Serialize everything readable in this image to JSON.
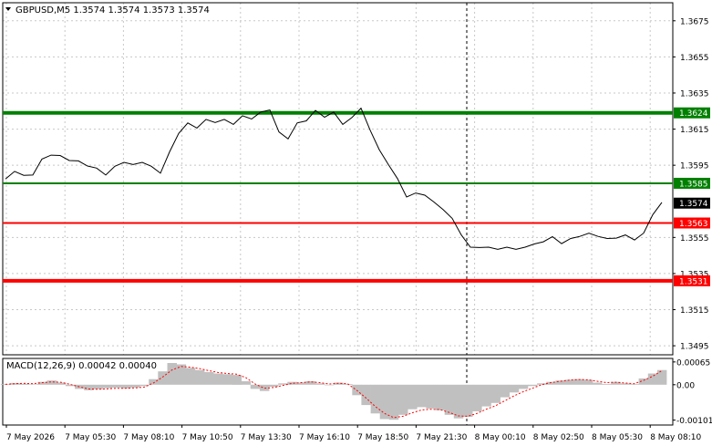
{
  "header": {
    "symbol_caption": "GBPUSD,M5  1.3574 1.3574 1.3573 1.3574",
    "dropdown_icon": "triangle-down-icon"
  },
  "macd_panel": {
    "caption": "MACD(12,26,9) 0.00042 0.00040"
  },
  "colors": {
    "background": "#ffffff",
    "price_line": "#000000",
    "grid": "#c8c8c8",
    "level_green": "#008000",
    "level_red": "#ff0000",
    "macd_histogram": "#c0c0c0",
    "macd_signal": "#ff0000",
    "current_price_tag": "#000000"
  },
  "chart_data": [
    {
      "type": "line",
      "title": "GBPUSD,M5",
      "ohlc_caption": "1.3574 1.3574 1.3573 1.3574",
      "x_tick_labels": [
        "7 May 2026",
        "7 May 05:30",
        "7 May 08:10",
        "7 May 10:50",
        "7 May 13:30",
        "7 May 16:10",
        "7 May 18:50",
        "7 May 21:30",
        "8 May 00:10",
        "8 May 02:50",
        "8 May 05:30",
        "8 May 08:10"
      ],
      "y_tick_labels": [
        "1.3675",
        "1.3655",
        "1.3635",
        "1.3615",
        "1.3595",
        "1.3555",
        "1.3535",
        "1.3515",
        "1.3495"
      ],
      "ylim": [
        1.349,
        1.3685
      ],
      "grid": true,
      "horizontal_levels": [
        {
          "value": 1.3624,
          "label": "1.3624",
          "color": "#008000",
          "thick": true
        },
        {
          "value": 1.3585,
          "label": "1.3585",
          "color": "#008000",
          "thick": false
        },
        {
          "value": 1.3563,
          "label": "1.3563",
          "color": "#ff0000",
          "thick": false
        },
        {
          "value": 1.3531,
          "label": "1.3531",
          "color": "#ff0000",
          "thick": true
        }
      ],
      "current_price": {
        "value": 1.3574,
        "label": "1.3574"
      },
      "period_separator": "8 May 00:00",
      "series": [
        {
          "values": [
            1.3587,
            1.3592,
            1.3589,
            1.359,
            1.3598,
            1.3601,
            1.36,
            1.3598,
            1.3597,
            1.3595,
            1.3593,
            1.359,
            1.3594,
            1.3597,
            1.3595,
            1.3597,
            1.3594,
            1.3591,
            1.3602,
            1.3613,
            1.3618,
            1.3616,
            1.362,
            1.3619,
            1.362,
            1.3618,
            1.3622,
            1.3621,
            1.3624,
            1.3626,
            1.3613,
            1.361,
            1.3618,
            1.362,
            1.3625,
            1.3622,
            1.3624,
            1.3618,
            1.3621,
            1.3627,
            1.3614,
            1.3604,
            1.3595,
            1.3588,
            1.3577,
            1.358,
            1.3578,
            1.3575,
            1.357,
            1.3566,
            1.3556,
            1.355,
            1.3549,
            1.355,
            1.3548,
            1.355,
            1.3548,
            1.355,
            1.3551,
            1.3553,
            1.3555,
            1.3552,
            1.3554,
            1.3556,
            1.3557,
            1.3556,
            1.3554,
            1.3555,
            1.3556,
            1.3554,
            1.3557,
            1.3568,
            1.3574
          ]
        }
      ]
    },
    {
      "type": "bar",
      "title": "MACD(12,26,9)",
      "caption_values": "0.00042 0.00040",
      "y_tick_labels": [
        "0.00065",
        "0.00",
        "-0.00101"
      ],
      "ylim": [
        -0.00115,
        0.00075
      ],
      "series": [
        {
          "name": "MACD",
          "type": "histogram",
          "values": [
            2e-05,
            5e-05,
            3e-05,
            1e-05,
            8e-05,
            0.00012,
            6e-05,
            -4e-05,
            -0.00012,
            -0.00016,
            -0.00013,
            -0.0001,
            -8e-05,
            -0.00011,
            -8e-05,
            -4e-05,
            0.00016,
            0.00038,
            0.00062,
            0.00058,
            0.00048,
            0.00042,
            0.00036,
            0.00032,
            0.0003,
            0.00028,
            0.0001,
            -0.00012,
            -0.00018,
            -6e-05,
            4e-05,
            8e-05,
            6e-05,
            0.0001,
            4e-05,
            0.0,
            6e-05,
            2e-05,
            -0.0003,
            -0.00058,
            -0.00082,
            -0.00098,
            -0.001,
            -0.00086,
            -0.0007,
            -0.00064,
            -0.00068,
            -0.00073,
            -0.00086,
            -0.00096,
            -0.00092,
            -0.00076,
            -0.00062,
            -0.00052,
            -0.00036,
            -0.00022,
            -0.00012,
            -4e-05,
            4e-05,
            8e-05,
            0.00012,
            0.00014,
            0.00016,
            0.00014,
            6e-05,
            2e-05,
            8e-05,
            4e-05,
            2e-05,
            0.00018,
            0.00032,
            0.00042
          ]
        },
        {
          "name": "Signal",
          "type": "line",
          "values": [
            1e-05,
            3e-05,
            4e-05,
            3e-05,
            6e-05,
            8e-05,
            7e-05,
            1e-05,
            -6e-05,
            -0.00012,
            -0.00013,
            -0.00012,
            -0.0001,
            -0.0001,
            -9e-05,
            -7e-05,
            5e-05,
            0.00022,
            0.00042,
            0.00052,
            0.0005,
            0.00046,
            0.0004,
            0.00035,
            0.00032,
            0.0003,
            0.0002,
            2e-05,
            -0.0001,
            -8e-05,
            -2e-05,
            4e-05,
            6e-05,
            8e-05,
            6e-05,
            2e-05,
            4e-05,
            3e-05,
            -0.00016,
            -0.00038,
            -0.00062,
            -0.00082,
            -0.00094,
            -0.0009,
            -0.0008,
            -0.00072,
            -0.0007,
            -0.00071,
            -0.00079,
            -0.00089,
            -0.0009,
            -0.00082,
            -0.0007,
            -0.0006,
            -0.00046,
            -0.00032,
            -0.0002,
            -0.0001,
            0.0,
            6e-05,
            0.0001,
            0.00013,
            0.00015,
            0.00014,
            0.0001,
            6e-05,
            7e-05,
            5e-05,
            3e-05,
            0.00012,
            0.00024,
            0.0004
          ]
        }
      ]
    }
  ]
}
